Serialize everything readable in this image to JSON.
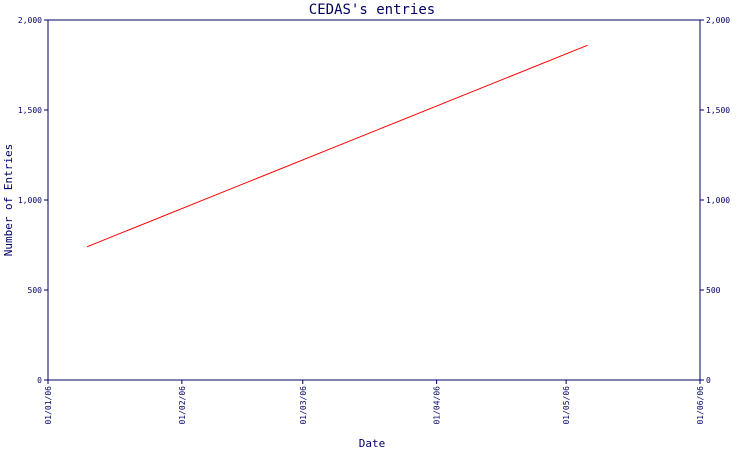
{
  "chart_data": {
    "type": "line",
    "title": "CEDAS's entries",
    "xlabel": "Date",
    "ylabel": "Number of Entries",
    "x_tick_labels": [
      "01/01/06",
      "01/02/06",
      "01/03/06",
      "01/04/06",
      "01/05/06",
      "01/06/06"
    ],
    "y_tick_labels": [
      "0",
      "500",
      "1,000",
      "1,500",
      "2,000"
    ],
    "ylim": [
      0,
      2000
    ],
    "y_ticks": [
      0,
      500,
      1000,
      1500,
      2000
    ],
    "xlim": [
      "2006-01-01",
      "2006-06-01"
    ],
    "x_ticks": [
      "2006-01-01",
      "2006-02-01",
      "2006-03-01",
      "2006-04-01",
      "2006-05-01",
      "2006-06-01"
    ],
    "series": [
      {
        "color": "#ff0000",
        "points": [
          {
            "x": "2006-01-10",
            "y": 740
          },
          {
            "x": "2006-05-06",
            "y": 1860
          }
        ]
      }
    ],
    "right_axis_mirrors_left": true,
    "grid": false,
    "frame_color": "#000066"
  }
}
